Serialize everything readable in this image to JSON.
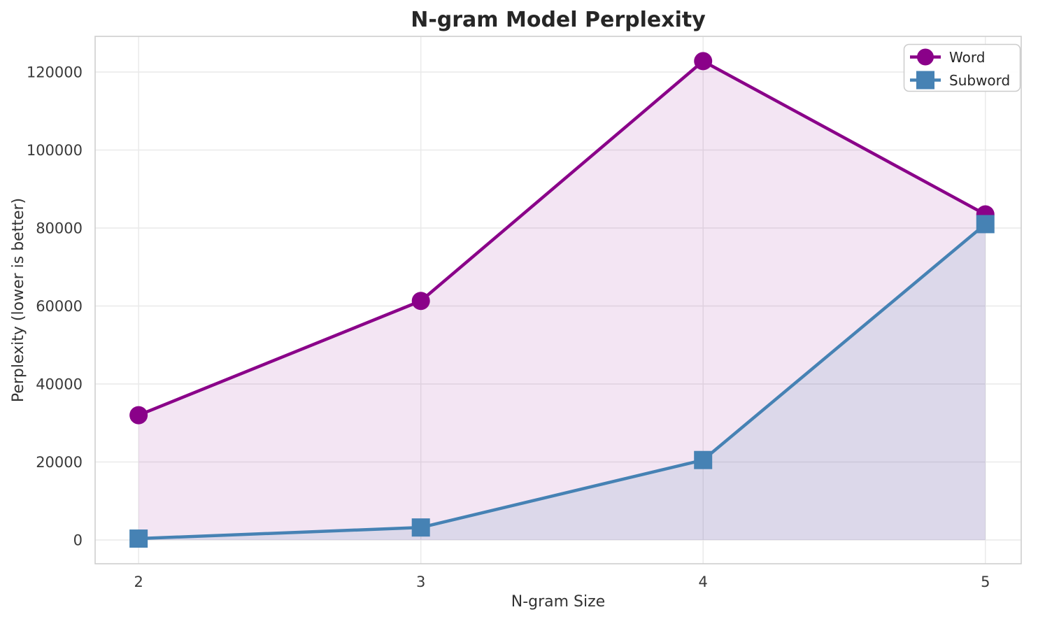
{
  "chart_data": {
    "type": "line",
    "title": "N-gram Model Perplexity",
    "xlabel": "N-gram Size",
    "ylabel": "Perplexity (lower is better)",
    "x": [
      2,
      3,
      4,
      5
    ],
    "series": [
      {
        "name": "Word",
        "marker": "circle",
        "color": "#8a0189",
        "fill_opacity": 0.1,
        "values": [
          32000,
          61300,
          122800,
          83500
        ]
      },
      {
        "name": "Subword",
        "marker": "square",
        "color": "#4682b4",
        "fill_opacity": 0.13,
        "values": [
          350,
          3200,
          20500,
          81000
        ]
      }
    ],
    "fill_baseline": 0,
    "xlim": [
      1.846,
      5.127
    ],
    "ylim": [
      -6100,
      129150
    ],
    "xticks": [
      2,
      3,
      4,
      5
    ],
    "xtick_labels": [
      "2",
      "3",
      "4",
      "5"
    ],
    "yticks": [
      0,
      20000,
      40000,
      60000,
      80000,
      100000,
      120000
    ],
    "ytick_labels": [
      "0",
      "20000",
      "40000",
      "60000",
      "80000",
      "100000",
      "120000"
    ],
    "grid": true,
    "legend_position": "upper right",
    "colors": {
      "background": "#ffffff",
      "grid": "#e9e9e9",
      "spine": "#cfcfcf",
      "tick_label": "#3a3a3a",
      "title": "#262626",
      "legend_border": "#cccccc",
      "legend_background": "#ffffff"
    }
  }
}
